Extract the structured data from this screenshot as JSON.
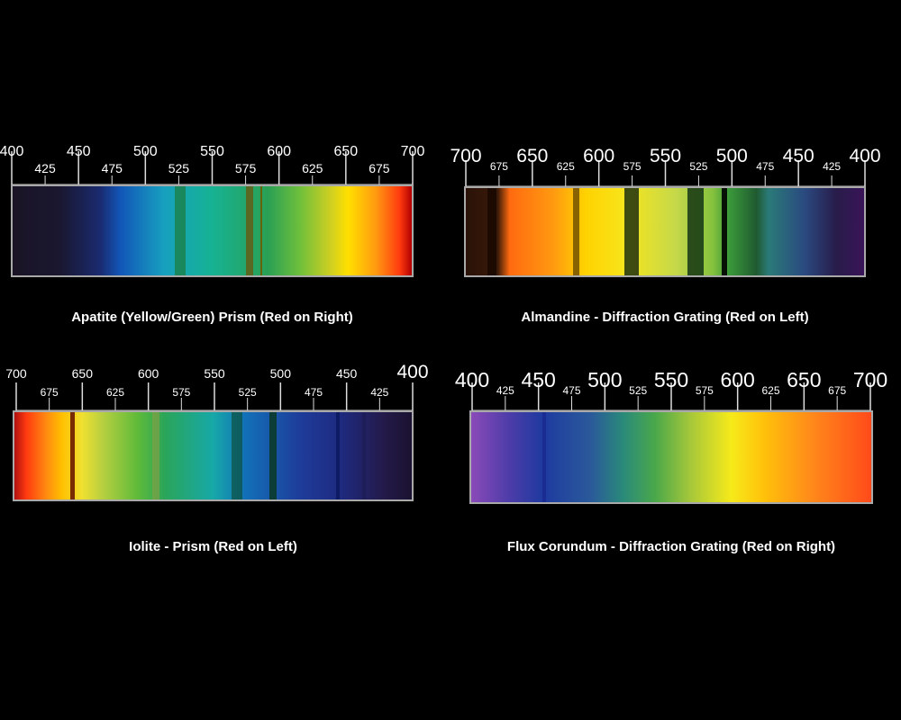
{
  "background": "#000000",
  "panels": [
    {
      "id": "apatite",
      "caption": "Apatite (Yellow/Green) Prism (Red on Right)",
      "instrument": "prism",
      "red_side": "right",
      "major_ticks": [
        {
          "label": "400",
          "wl": 400
        },
        {
          "label": "450",
          "wl": 450
        },
        {
          "label": "500",
          "wl": 500
        },
        {
          "label": "550",
          "wl": 550
        },
        {
          "label": "600",
          "wl": 600
        },
        {
          "label": "650",
          "wl": 650
        },
        {
          "label": "700",
          "wl": 700
        }
      ],
      "minor_ticks": [
        {
          "label": "425",
          "wl": 425
        },
        {
          "label": "475",
          "wl": 475
        },
        {
          "label": "525",
          "wl": 525
        },
        {
          "label": "575",
          "wl": 575
        },
        {
          "label": "625",
          "wl": 625
        },
        {
          "label": "675",
          "wl": 675
        }
      ],
      "gradient": [
        "#1a1425 0%",
        "#1a1730 12%",
        "#1a2b70 22%",
        "#1256b8 27%",
        "#17a0bf 38%",
        "#16b293 50%",
        "#2aa054 64%",
        "#6fbf3c 72%",
        "#d2d020 80%",
        "#ffe000 84%",
        "#ff9a10 91%",
        "#ff3a10 97%",
        "#b00000 100%"
      ],
      "absorption_lines": [
        {
          "wl": 526,
          "color": "#1c7a3a",
          "opacity": 0.7,
          "width": 12
        },
        {
          "wl": 578,
          "color": "#665a10",
          "opacity": 0.8,
          "width": 8
        },
        {
          "wl": 587,
          "color": "#6a5c00",
          "opacity": 0.9,
          "width": 2
        }
      ]
    },
    {
      "id": "almandine",
      "caption": "Almandine - Diffraction Grating (Red on Left)",
      "instrument": "diffraction-grating",
      "red_side": "left",
      "major_ticks": [
        {
          "label": "700",
          "wl": 700
        },
        {
          "label": "650",
          "wl": 650
        },
        {
          "label": "600",
          "wl": 600
        },
        {
          "label": "550",
          "wl": 550
        },
        {
          "label": "500",
          "wl": 500
        },
        {
          "label": "450",
          "wl": 450
        },
        {
          "label": "400",
          "wl": 400
        }
      ],
      "minor_ticks": [
        {
          "label": "675",
          "wl": 675
        },
        {
          "label": "625",
          "wl": 625
        },
        {
          "label": "575",
          "wl": 575
        },
        {
          "label": "525",
          "wl": 525
        },
        {
          "label": "475",
          "wl": 475
        },
        {
          "label": "425",
          "wl": 425
        }
      ],
      "gradient": [
        "#2a1208 0%",
        "#3a1a08 8%",
        "#ff6a10 11%",
        "#ff9a10 22%",
        "#ffd200 30%",
        "#f7e51c 40%",
        "#c4d84a 53%",
        "#86c23e 62%",
        "#3a9a3a 66%",
        "#205a30 73%",
        "#2a7a78 76%",
        "#2a4a80 85%",
        "#281c4a 93%",
        "#3a1458 100%"
      ],
      "absorption_lines": [
        {
          "wl": 680,
          "color": "#180800",
          "opacity": 0.85,
          "width": 10
        },
        {
          "wl": 617,
          "color": "#6a4a00",
          "opacity": 0.8,
          "width": 7
        },
        {
          "wl": 575,
          "color": "#2a3a10",
          "opacity": 0.9,
          "width": 16
        },
        {
          "wl": 527,
          "color": "#0a2a10",
          "opacity": 0.8,
          "width": 18
        },
        {
          "wl": 505,
          "color": "#000000",
          "opacity": 0.9,
          "width": 6
        }
      ]
    },
    {
      "id": "iolite",
      "caption": "Iolite - Prism (Red on Left)",
      "instrument": "prism",
      "red_side": "left",
      "major_ticks": [
        {
          "label": "700",
          "wl": 700
        },
        {
          "label": "650",
          "wl": 650
        },
        {
          "label": "600",
          "wl": 600
        },
        {
          "label": "550",
          "wl": 550
        },
        {
          "label": "500",
          "wl": 500
        },
        {
          "label": "450",
          "wl": 450
        },
        {
          "label": "400",
          "wl": 400
        }
      ],
      "minor_ticks": [
        {
          "label": "675",
          "wl": 675
        },
        {
          "label": "625",
          "wl": 625
        },
        {
          "label": "575",
          "wl": 575
        },
        {
          "label": "525",
          "wl": 525
        },
        {
          "label": "475",
          "wl": 475
        },
        {
          "label": "425",
          "wl": 425
        }
      ],
      "gradient": [
        "#b01010 0%",
        "#ff3a10 3%",
        "#ff8a10 8%",
        "#ffc000 12%",
        "#f0e030 17%",
        "#b9d040 22%",
        "#5fba3a 31%",
        "#2aa55a 38%",
        "#17a8a8 50%",
        "#1270b8 58%",
        "#1e3c9a 72%",
        "#1e2a80 82%",
        "#241a4a 93%",
        "#1a1230 100%"
      ],
      "absorption_lines": [
        {
          "wl": 656,
          "color": "#6a1a00",
          "opacity": 0.9,
          "width": 5
        },
        {
          "wl": 593,
          "color": "#9a9a40",
          "opacity": 0.5,
          "width": 8
        },
        {
          "wl": 532,
          "color": "#0a4a2a",
          "opacity": 0.6,
          "width": 12
        },
        {
          "wl": 505,
          "color": "#0a3a2a",
          "opacity": 0.9,
          "width": 8
        },
        {
          "wl": 456,
          "color": "#0a1a60",
          "opacity": 0.9,
          "width": 4
        },
        {
          "wl": 436,
          "color": "#1a1a50",
          "opacity": 0.5,
          "width": 4
        }
      ]
    },
    {
      "id": "flux-corundum",
      "caption": "Flux Corundum - Diffraction Grating (Red on Right)",
      "instrument": "diffraction-grating",
      "red_side": "right",
      "major_ticks": [
        {
          "label": "400",
          "wl": 400
        },
        {
          "label": "450",
          "wl": 450
        },
        {
          "label": "500",
          "wl": 500
        },
        {
          "label": "550",
          "wl": 550
        },
        {
          "label": "600",
          "wl": 600
        },
        {
          "label": "650",
          "wl": 650
        },
        {
          "label": "700",
          "wl": 700
        }
      ],
      "minor_ticks": [
        {
          "label": "425",
          "wl": 425
        },
        {
          "label": "475",
          "wl": 475
        },
        {
          "label": "525",
          "wl": 525
        },
        {
          "label": "575",
          "wl": 575
        },
        {
          "label": "625",
          "wl": 625
        },
        {
          "label": "675",
          "wl": 675
        }
      ],
      "gradient": [
        "#8a4ab8 0%",
        "#4a3ca8 10%",
        "#1e3aa0 18%",
        "#2a5a9a 30%",
        "#2a8a7a 38%",
        "#4aa84a 46%",
        "#a8c83a 55%",
        "#f6ea1a 65%",
        "#ffc20a 73%",
        "#ff8a1a 85%",
        "#ff4a1a 100%"
      ],
      "absorption_lines": [
        {
          "wl": 455,
          "color": "#1a2a90",
          "opacity": 0.9,
          "width": 4
        }
      ]
    }
  ]
}
